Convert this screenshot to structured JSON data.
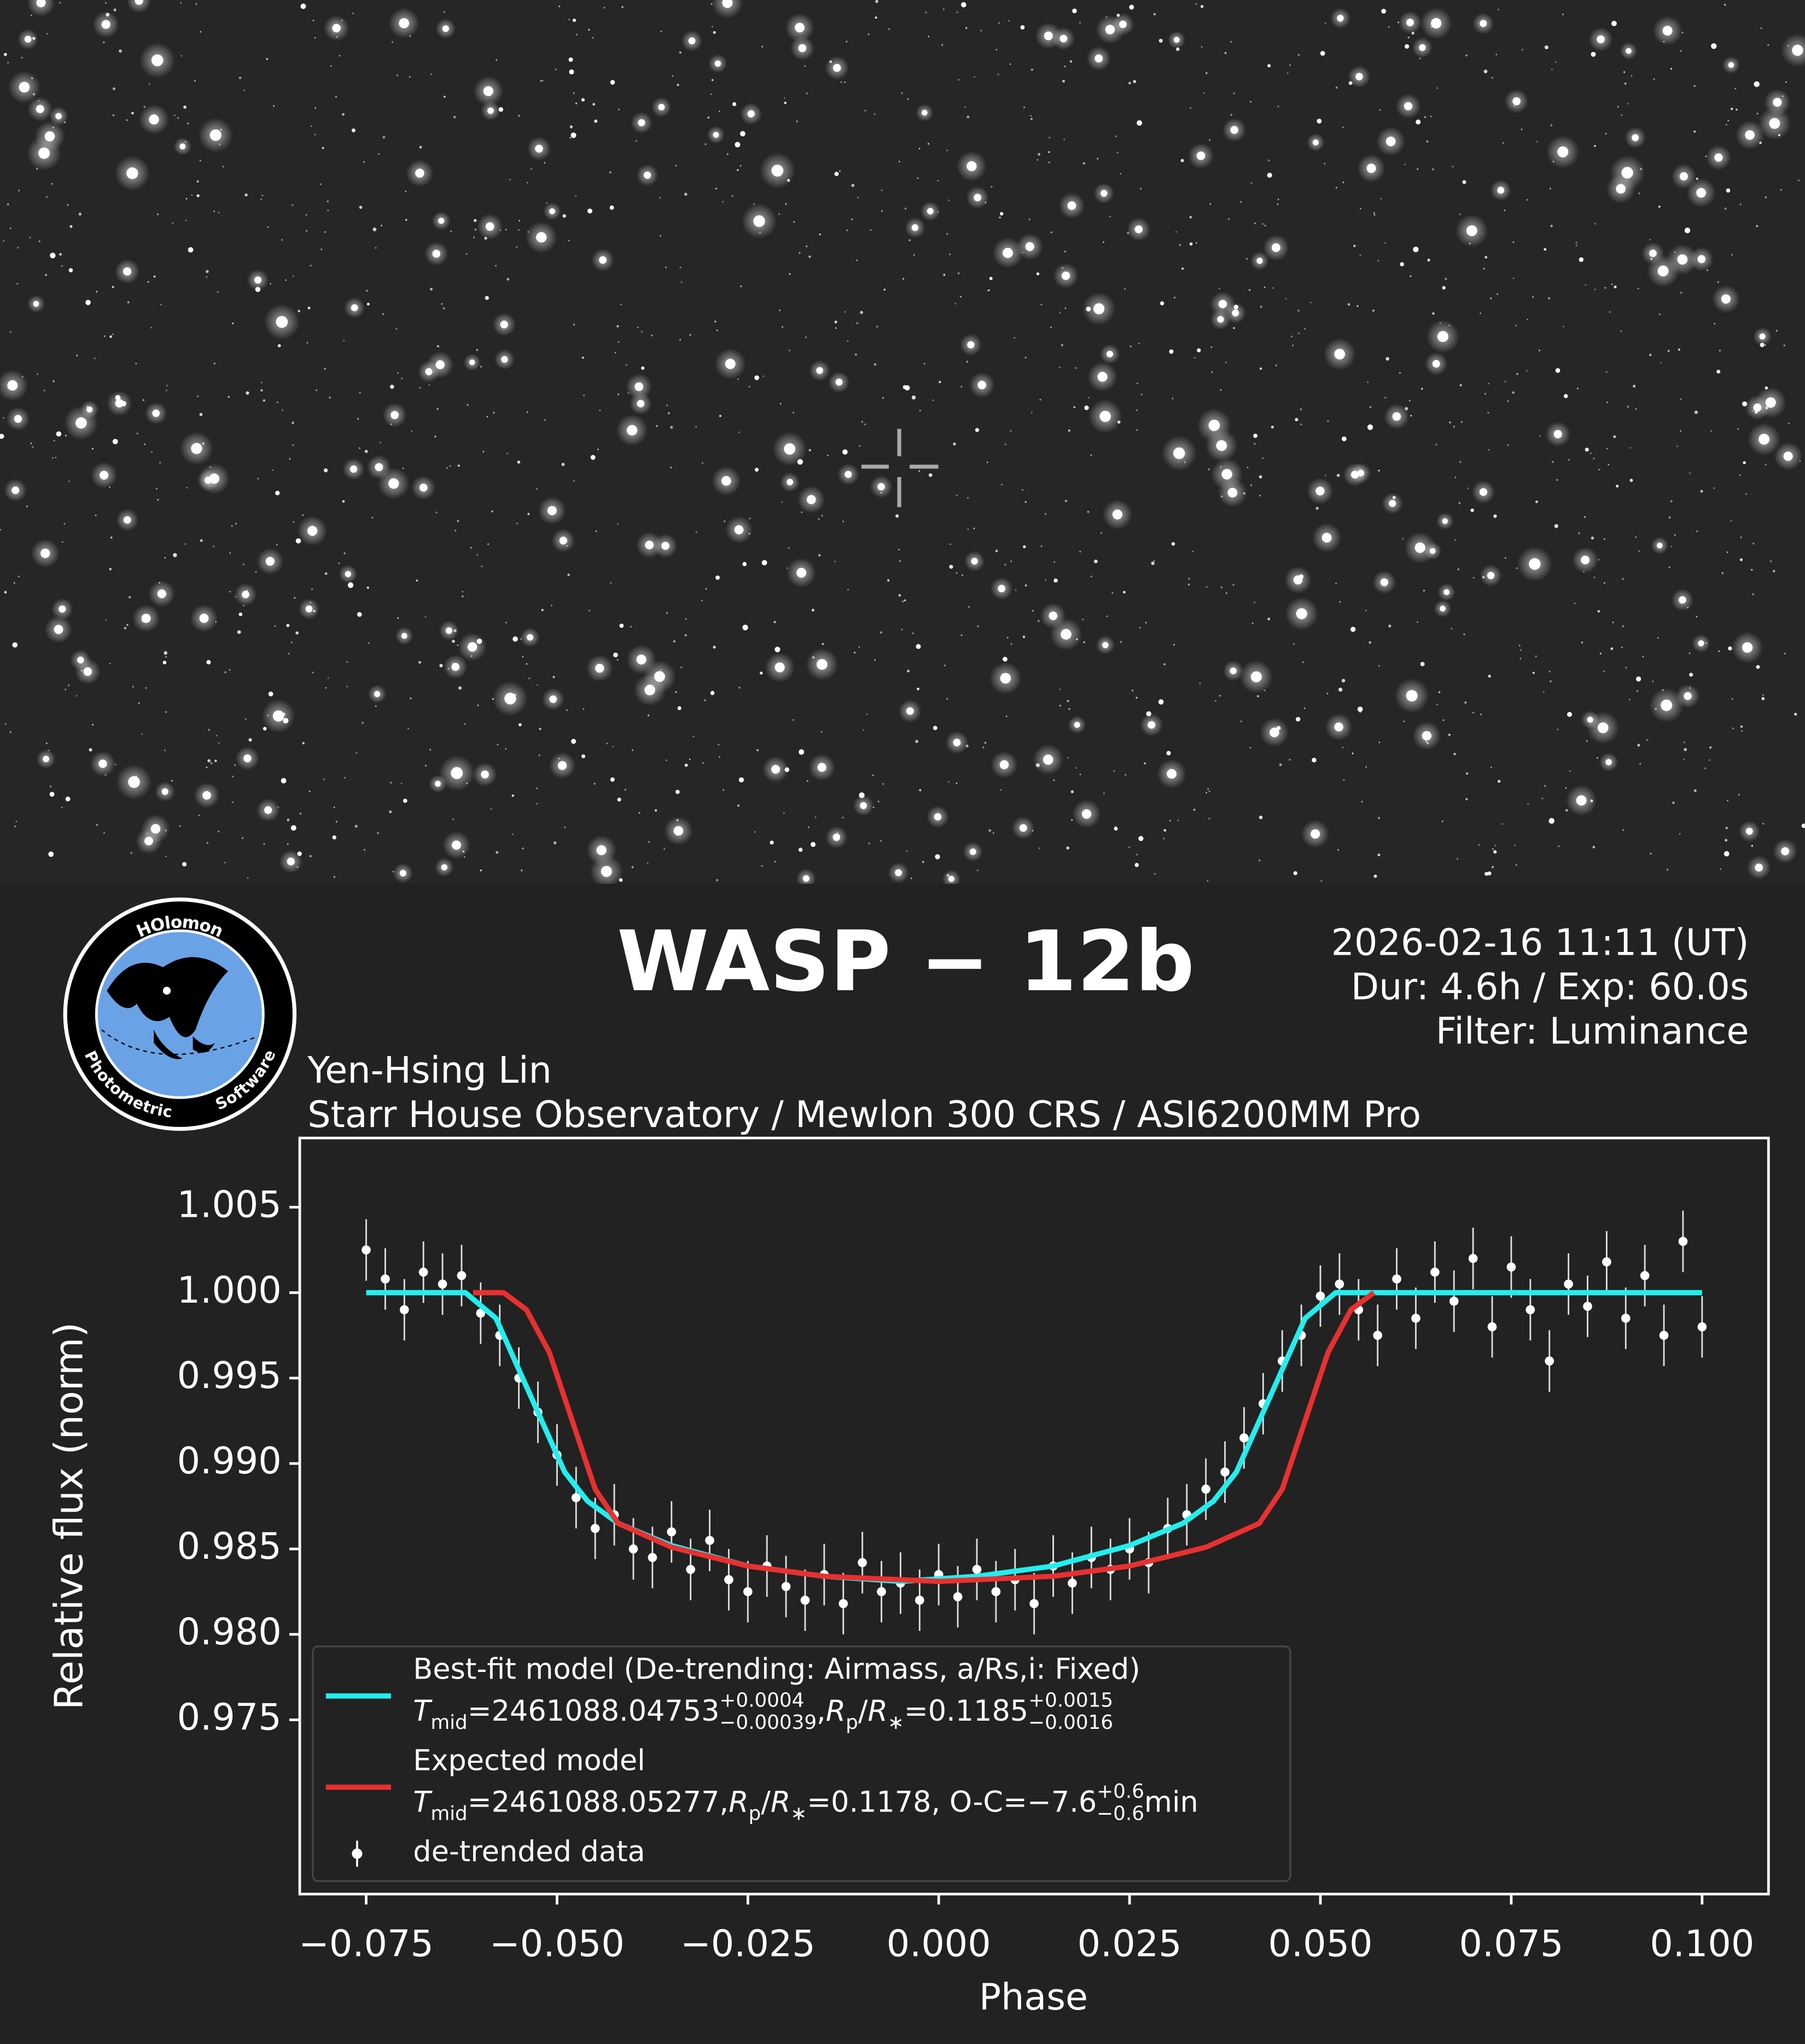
{
  "header": {
    "title": "WASP − 12b",
    "info": [
      "2026-02-16 11:11 (UT)",
      "Dur: 4.6h / Exp: 60.0s",
      "Filter: Luminance"
    ],
    "observer": "Yen-Hsing Lin",
    "setup": "Starr House Observatory / Mewlon 300 CRS / ASI6200MM Pro",
    "logo": [
      "HOlomon",
      "Photometric",
      "Software"
    ]
  },
  "chart_data": {
    "type": "line",
    "x_label": "Phase",
    "y_label": "Relative flux (norm)",
    "xlim": [
      -0.0837,
      0.1087
    ],
    "ylim": [
      0.9648,
      1.00905
    ],
    "xticks": [
      {
        "value": -0.075,
        "label": "−0.075"
      },
      {
        "value": -0.05,
        "label": "−0.050"
      },
      {
        "value": -0.025,
        "label": "−0.025"
      },
      {
        "value": 0,
        "label": "0.000"
      },
      0.025,
      {
        "value": 0.05,
        "label": "0.050"
      },
      0.075,
      {
        "value": 0.1,
        "label": "0.100"
      }
    ],
    "yticks": [
      1.005,
      {
        "value": 1,
        "label": "1.000"
      },
      0.995,
      {
        "value": 0.99,
        "label": "0.990"
      },
      0.985,
      {
        "value": 0.98,
        "label": "0.980"
      },
      0.975
    ],
    "series": [
      {
        "name": "Best-fit model (De-trending: Airmass, a/Rs,i: Fixed)",
        "kind": "line",
        "color": "#22eeee",
        "x": [
          -0.075,
          -0.062,
          -0.058,
          -0.055,
          -0.052,
          -0.049,
          -0.046,
          -0.042,
          -0.035,
          -0.025,
          -0.015,
          -0.005,
          0.005,
          0.015,
          0.025,
          0.032,
          0.036,
          0.039,
          0.042,
          0.045,
          0.048,
          0.052,
          0.1
        ],
        "values": [
          1,
          1,
          0.9985,
          0.9955,
          0.9925,
          0.9895,
          0.9878,
          0.9865,
          0.9852,
          0.984,
          0.9834,
          0.9831,
          0.9834,
          0.984,
          0.9852,
          0.9865,
          0.9878,
          0.9895,
          0.9925,
          0.9955,
          0.9985,
          1,
          1
        ],
        "annotation_parts": [
          {
            "text": "T",
            "style": "italic"
          },
          {
            "text": "mid",
            "style": "sub"
          },
          {
            "text": "=2461088.04753",
            "style": "normal"
          },
          {
            "text": "+0.0004",
            "style": "sup"
          },
          {
            "text": "−0.00039",
            "style": "sub"
          },
          {
            "text": ", ",
            "style": "normal"
          },
          {
            "text": "R",
            "style": "italic"
          },
          {
            "text": "p",
            "style": "sub"
          },
          {
            "text": "/",
            "style": "normal"
          },
          {
            "text": "R",
            "style": "italic"
          },
          {
            "text": "∗",
            "style": "sub"
          },
          {
            "text": "=0.1185",
            "style": "normal"
          },
          {
            "text": "+0.0015",
            "style": "sup"
          },
          {
            "text": "−0.0016",
            "style": "sub"
          }
        ]
      },
      {
        "name": "Expected model",
        "kind": "line",
        "color": "#e83030",
        "x": [
          -0.061,
          -0.057,
          -0.054,
          -0.051,
          -0.048,
          -0.045,
          -0.042,
          -0.035,
          -0.025,
          -0.015,
          0,
          0.015,
          0.025,
          0.035,
          0.042,
          0.045,
          0.048,
          0.051,
          0.054,
          0.057
        ],
        "values": [
          1,
          1,
          0.999,
          0.9965,
          0.9925,
          0.9885,
          0.9865,
          0.9851,
          0.984,
          0.9834,
          0.9831,
          0.9834,
          0.984,
          0.9851,
          0.9865,
          0.9885,
          0.9925,
          0.9965,
          0.999,
          1
        ],
        "annotation_parts": [
          {
            "text": "T",
            "style": "italic"
          },
          {
            "text": "mid",
            "style": "sub"
          },
          {
            "text": "=2461088.05277, ",
            "style": "normal"
          },
          {
            "text": "R",
            "style": "italic"
          },
          {
            "text": "p",
            "style": "sub"
          },
          {
            "text": "/",
            "style": "normal"
          },
          {
            "text": "R",
            "style": "italic"
          },
          {
            "text": "∗",
            "style": "sub"
          },
          {
            "text": "=0.1178, O-C=−7.6",
            "style": "normal"
          },
          {
            "text": "+0.6",
            "style": "sup"
          },
          {
            "text": "−0.6",
            "style": "sub"
          },
          {
            "text": " min",
            "style": "normal"
          }
        ]
      },
      {
        "name": "de-trended data",
        "kind": "errorbar",
        "color": "#ffffff",
        "x": [
          -0.075,
          -0.0725,
          -0.07,
          -0.0675,
          -0.065,
          -0.0625,
          -0.06,
          -0.0575,
          -0.055,
          -0.0525,
          -0.05,
          -0.0475,
          -0.045,
          -0.0425,
          -0.04,
          -0.0375,
          -0.035,
          -0.0325,
          -0.03,
          -0.0275,
          -0.025,
          -0.0225,
          -0.02,
          -0.0175,
          -0.015,
          -0.0125,
          -0.01,
          -0.0075,
          -0.005,
          -0.0025,
          0,
          0.0025,
          0.005,
          0.0075,
          0.01,
          0.0125,
          0.015,
          0.0175,
          0.02,
          0.0225,
          0.025,
          0.0275,
          0.03,
          0.0325,
          0.035,
          0.0375,
          0.04,
          0.0425,
          0.045,
          0.0475,
          0.05,
          0.0525,
          0.055,
          0.0575,
          0.06,
          0.0625,
          0.065,
          0.0675,
          0.07,
          0.0725,
          0.075,
          0.0775,
          0.08,
          0.0825,
          0.085,
          0.0875,
          0.09,
          0.0925,
          0.095,
          0.0975,
          0.1
        ],
        "values": [
          1.0025,
          1.0008,
          0.999,
          1.0012,
          1.0005,
          1.001,
          0.9988,
          0.9975,
          0.995,
          0.993,
          0.9905,
          0.988,
          0.9862,
          0.987,
          0.985,
          0.9845,
          0.986,
          0.9838,
          0.9855,
          0.9832,
          0.9825,
          0.984,
          0.9828,
          0.982,
          0.9835,
          0.9818,
          0.9842,
          0.9825,
          0.983,
          0.982,
          0.9835,
          0.9822,
          0.9838,
          0.9825,
          0.9832,
          0.9818,
          0.984,
          0.983,
          0.9845,
          0.9838,
          0.985,
          0.9842,
          0.9862,
          0.987,
          0.9885,
          0.9895,
          0.9915,
          0.9935,
          0.996,
          0.9975,
          0.9998,
          1.0005,
          0.999,
          0.9975,
          1.0008,
          0.9985,
          1.0012,
          0.9995,
          1.002,
          0.998,
          1.0015,
          0.999,
          0.996,
          1.0005,
          0.9992,
          1.0018,
          0.9985,
          1.001,
          0.9975,
          1.003,
          0.998
        ],
        "errors": [
          0.0018,
          0.0018,
          0.0018,
          0.0018,
          0.0018,
          0.0018,
          0.0018,
          0.0018,
          0.0018,
          0.0018,
          0.0018,
          0.0018,
          0.0018,
          0.0018,
          0.0018,
          0.0018,
          0.0018,
          0.0018,
          0.0018,
          0.0018,
          0.0018,
          0.0018,
          0.0018,
          0.0018,
          0.0018,
          0.0018,
          0.0018,
          0.0018,
          0.0018,
          0.0018,
          0.0018,
          0.0018,
          0.0018,
          0.0018,
          0.0018,
          0.0018,
          0.0018,
          0.0018,
          0.0018,
          0.0018,
          0.0018,
          0.0018,
          0.0018,
          0.0018,
          0.0018,
          0.0018,
          0.0018,
          0.0018,
          0.0018,
          0.0018,
          0.0018,
          0.0018,
          0.0018,
          0.0018,
          0.0018,
          0.0018,
          0.0018,
          0.0018,
          0.0018,
          0.0018,
          0.0018,
          0.0018,
          0.0018,
          0.0018,
          0.0018,
          0.0018,
          0.0018,
          0.0018,
          0.0018,
          0.0018,
          0.0018
        ]
      }
    ]
  }
}
